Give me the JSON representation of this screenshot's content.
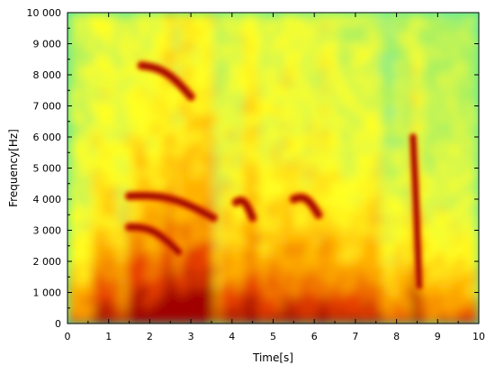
{
  "chart_data": {
    "type": "heatmap",
    "title": "",
    "xlabel": "Time[s]",
    "ylabel": "Frequency[Hz]",
    "xlim": [
      0,
      10
    ],
    "ylim": [
      0,
      10000
    ],
    "x_ticks": [
      0,
      1,
      2,
      3,
      4,
      5,
      6,
      7,
      8,
      9,
      10
    ],
    "x_tick_labels": [
      "0",
      "1",
      "2",
      "3",
      "4",
      "5",
      "6",
      "7",
      "8",
      "9",
      "10"
    ],
    "y_ticks": [
      0,
      1000,
      2000,
      3000,
      4000,
      5000,
      6000,
      7000,
      8000,
      9000,
      10000
    ],
    "y_tick_labels": [
      "0",
      "1 000",
      "2 000",
      "3 000",
      "4 000",
      "5 000",
      "6 000",
      "7 000",
      "8 000",
      "9 000",
      "10 000"
    ],
    "colormap": [
      "#40e8b0",
      "#a8f060",
      "#ffff20",
      "#ffb000",
      "#e84000",
      "#a00000"
    ],
    "high_energy_features": [
      {
        "time_range": [
          1.5,
          3.55
        ],
        "freq_start": 4100,
        "freq_end": 3400
      },
      {
        "time_range": [
          1.5,
          2.7
        ],
        "freq_start": 3100,
        "freq_end": 2300
      },
      {
        "time_range": [
          1.8,
          3.0
        ],
        "freq_start": 8300,
        "freq_end": 7300
      },
      {
        "time_range": [
          4.1,
          4.5
        ],
        "freq_start": 3900,
        "freq_end": 3400
      },
      {
        "time_range": [
          5.5,
          6.1
        ],
        "freq_start": 4000,
        "freq_end": 3500
      },
      {
        "time_range": [
          8.4,
          8.55
        ],
        "freq_start": 6000,
        "freq_end": 1200
      }
    ]
  }
}
